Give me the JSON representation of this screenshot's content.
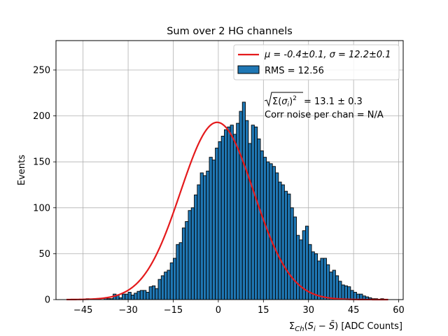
{
  "chart_data": {
    "type": "bar",
    "title": "Sum over 2 HG channels",
    "xlabel": "Σ_Ch(S_i − S̄) [ADC Counts]",
    "ylabel": "Events",
    "xlim": [
      -54,
      61.5
    ],
    "ylim": [
      0,
      282
    ],
    "xticks": [
      -45,
      -30,
      -15,
      0,
      15,
      30,
      45,
      60
    ],
    "xtick_labels": [
      "−45",
      "−30",
      "−15",
      "0",
      "15",
      "30",
      "45",
      "60"
    ],
    "yticks": [
      0,
      50,
      100,
      150,
      200,
      250
    ],
    "ytick_labels": [
      "0",
      "50",
      "100",
      "150",
      "200",
      "250"
    ],
    "grid": true,
    "legend_position": "top-right",
    "bin_width": 1,
    "bin_start": -44,
    "histogram": {
      "name": "RMS = 12.56",
      "color": "#1f77b4",
      "edgecolor": "#000000",
      "counts": [
        1,
        0,
        0,
        1,
        0,
        0,
        2,
        1,
        1,
        6,
        5,
        2,
        6,
        6,
        8,
        5,
        7,
        9,
        10,
        10,
        8,
        14,
        15,
        12,
        22,
        26,
        30,
        32,
        40,
        45,
        60,
        62,
        78,
        85,
        97,
        100,
        114,
        125,
        138,
        135,
        140,
        155,
        152,
        165,
        172,
        178,
        185,
        188,
        190,
        180,
        192,
        205,
        215,
        195,
        170,
        190,
        188,
        175,
        162,
        155,
        150,
        148,
        145,
        138,
        128,
        125,
        118,
        115,
        100,
        90,
        70,
        65,
        75,
        80,
        60,
        52,
        50,
        42,
        45,
        45,
        38,
        30,
        32,
        26,
        20,
        16,
        15,
        14,
        10,
        8,
        6,
        6,
        4,
        3,
        2,
        1,
        1,
        0,
        1,
        0
      ]
    },
    "fit": {
      "name": "μ = -0.4±0.1, σ = 12.2±0.1",
      "color": "#e41a1c",
      "mu": -0.4,
      "sigma": 12.2,
      "amplitude": 193,
      "x_range": [
        -50.5,
        56.5
      ]
    },
    "annotations": [
      "√Σ(σ_i)² = 13.1 ± 0.3",
      "Corr noise per chan = N/A"
    ]
  },
  "legend": {
    "fit_label": "μ = -0.4±0.1, σ = 12.2±0.1",
    "hist_label": "RMS = 12.56"
  },
  "annotations": {
    "line1_value": "= 13.1 ± 0.3",
    "line2": "Corr noise per chan = N/A"
  }
}
